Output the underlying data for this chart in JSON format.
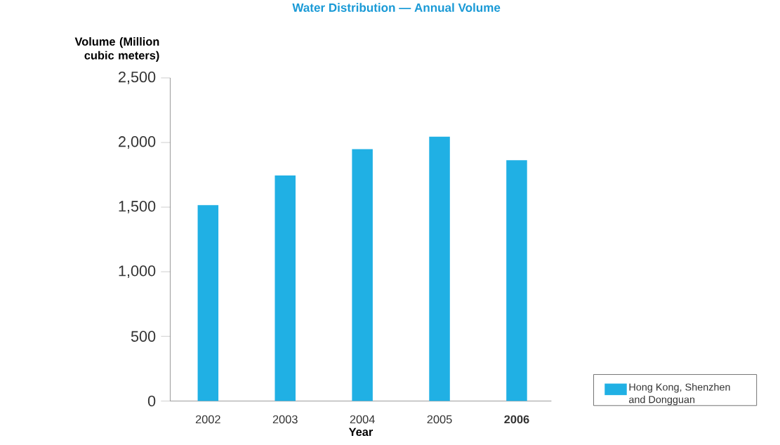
{
  "chart_data": {
    "type": "bar",
    "title": "Water Distribution — Annual Volume",
    "xlabel": "Year",
    "ylabel": "Volume (Million cubic meters)",
    "categories": [
      "2002",
      "2003",
      "2004",
      "2005",
      "**2006**"
    ],
    "series": [
      {
        "name": "Hong Kong, Shenzhen and Dongguan",
        "color": "#20b0e4",
        "values": [
          1515,
          1745,
          1948,
          2045,
          1863
        ]
      }
    ],
    "ylim": [
      0,
      2500
    ],
    "yticks": [
      0,
      500,
      {
        "value": 1000,
        "label": "1,000"
      },
      {
        "value": 1500,
        "label": "1,500"
      },
      {
        "value": 2000,
        "label": "2,000"
      },
      {
        "value": 2500,
        "label": "2,500"
      }
    ],
    "legend": "bottom right",
    "grid": false
  }
}
